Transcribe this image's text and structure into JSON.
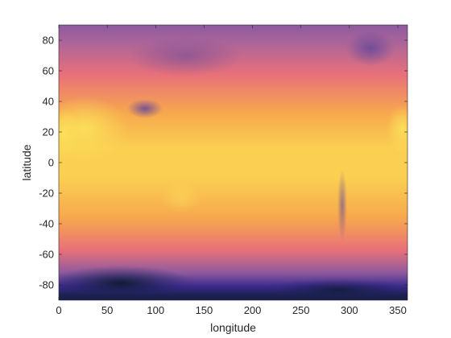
{
  "chart_data": {
    "type": "heatmap",
    "title": "",
    "xlabel": "longitude",
    "ylabel": "latitude",
    "xlim": [
      0,
      360
    ],
    "ylim": [
      -90,
      90
    ],
    "x_ticks": [
      0,
      50,
      100,
      150,
      200,
      250,
      300,
      350
    ],
    "y_ticks": [
      -80,
      -60,
      -40,
      -20,
      0,
      20,
      40,
      60,
      80
    ],
    "x_tick_labels": [
      "0",
      "50",
      "100",
      "150",
      "200",
      "250",
      "300",
      "350"
    ],
    "y_tick_labels": [
      "-80",
      "-60",
      "-40",
      "-20",
      "0",
      "20",
      "40",
      "60",
      "80"
    ],
    "grid": false,
    "colormap": [
      "#0d1b2e",
      "#3b2a8c",
      "#8e5a9e",
      "#e8707a",
      "#f7a84d",
      "#fbe05a"
    ],
    "field_description_values": {
      "antarctica": "lowest",
      "tropics": "high",
      "saharan_africa_and_arabia": "highest",
      "tibetan_plateau": "low",
      "arctic_and_greenland": "low"
    }
  }
}
